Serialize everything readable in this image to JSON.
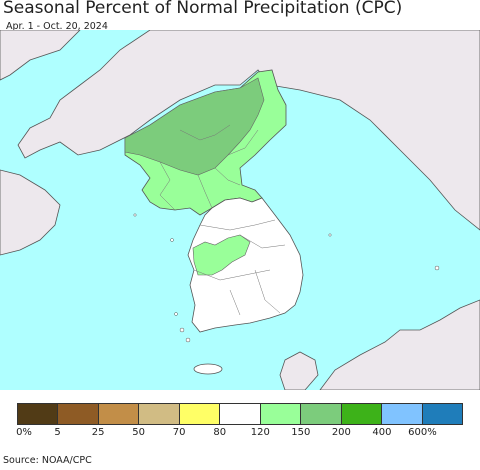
{
  "header": {
    "title": "Seasonal Percent of Normal Precipitation (CPC)",
    "subtitle": "Apr. 1 - Oct. 20, 2024"
  },
  "legend": {
    "colors": [
      "#513B16",
      "#8E5B25",
      "#C28E48",
      "#D1BC84",
      "#FFFF66",
      "#FFFFFF",
      "#99FF99",
      "#7CCC7C",
      "#3DB219",
      "#80C3FF",
      "#1F7DBA"
    ],
    "ticks": [
      "0%",
      "5",
      "25",
      "50",
      "70",
      "80",
      "120",
      "150",
      "200",
      "400",
      "600%"
    ]
  },
  "map": {
    "water_color": "#AFFFFF",
    "land_outside_color": "#EDE8ED",
    "normal_color": "#FFFFFF",
    "wet_150_color": "#99FF99",
    "wet_200_color": "#7CCC7C"
  },
  "footer": {
    "source": "Source: NOAA/CPC"
  }
}
